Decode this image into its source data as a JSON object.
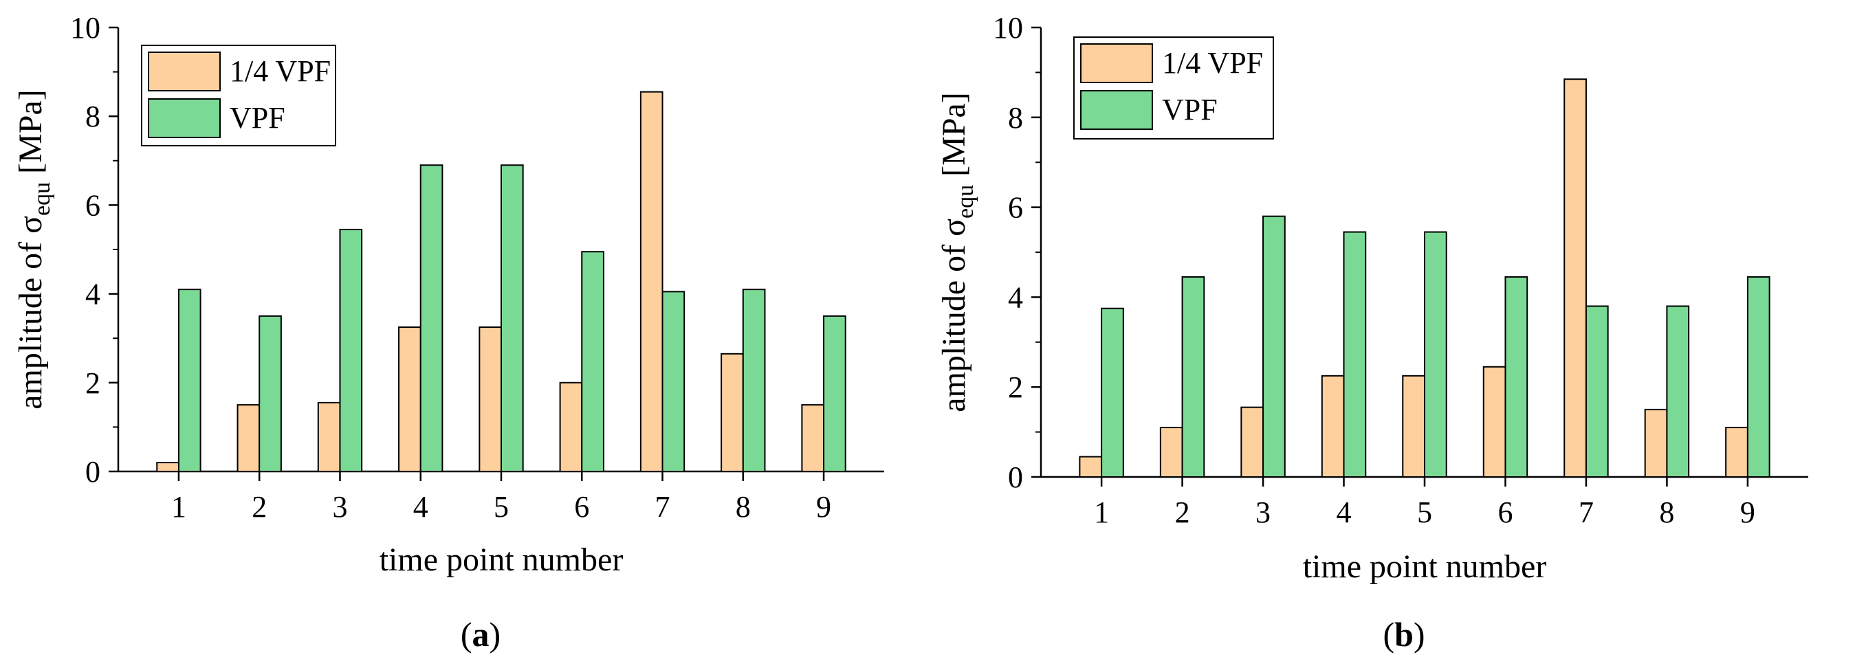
{
  "panels": [
    {
      "panel_label": "a",
      "chart_data": {
        "type": "bar",
        "categories": [
          "1",
          "2",
          "3",
          "4",
          "5",
          "6",
          "7",
          "8",
          "9"
        ],
        "series": [
          {
            "name": "1/4 VPF",
            "color": "#fdd09e",
            "values": [
              0.2,
              1.5,
              1.55,
              3.25,
              3.25,
              2.0,
              8.55,
              2.65,
              1.5
            ]
          },
          {
            "name": "VPF",
            "color": "#7bd996",
            "values": [
              4.1,
              3.5,
              5.45,
              6.9,
              6.9,
              4.95,
              4.05,
              4.1,
              3.5
            ]
          }
        ],
        "xlabel": "time point number",
        "ylabel_prefix": "amplitude of σ",
        "ylabel_sub": "equ",
        "ylabel_unit": " [MPa]",
        "ylim": [
          0,
          10
        ],
        "yticks": [
          0,
          2,
          4,
          6,
          8,
          10
        ],
        "grid": false,
        "legend_position": "top-left"
      }
    },
    {
      "panel_label": "b",
      "chart_data": {
        "type": "bar",
        "categories": [
          "1",
          "2",
          "3",
          "4",
          "5",
          "6",
          "7",
          "8",
          "9"
        ],
        "series": [
          {
            "name": "1/4 VPF",
            "color": "#fdd09e",
            "values": [
              0.45,
              1.1,
              1.55,
              2.25,
              2.25,
              2.45,
              8.85,
              1.5,
              1.1
            ]
          },
          {
            "name": "VPF",
            "color": "#7bd996",
            "values": [
              3.75,
              4.45,
              5.8,
              5.45,
              5.45,
              4.45,
              3.8,
              3.8,
              4.45
            ]
          }
        ],
        "xlabel": "time point number",
        "ylabel_prefix": "amplitude of σ",
        "ylabel_sub": "equ",
        "ylabel_unit": " [MPa]",
        "ylim": [
          0,
          10
        ],
        "yticks": [
          0,
          2,
          4,
          6,
          8,
          10
        ],
        "grid": false,
        "legend_position": "top-left"
      }
    }
  ]
}
